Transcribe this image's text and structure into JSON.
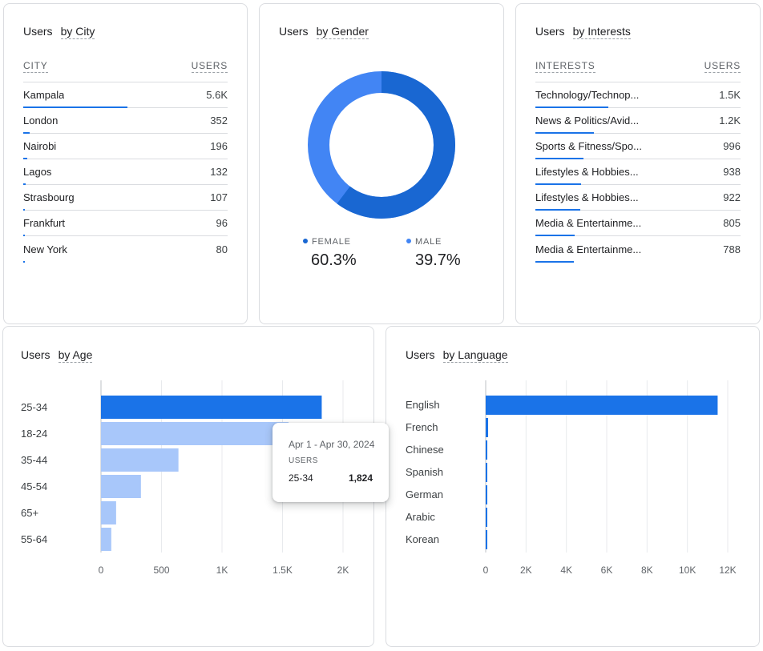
{
  "city_card": {
    "title_metric": "Users",
    "title_dim": "by City",
    "col_dim": "CITY",
    "col_metric": "USERS",
    "rows": [
      {
        "name": "Kampala",
        "value": "5.6K",
        "share": 1.0
      },
      {
        "name": "London",
        "value": "352",
        "share": 0.063
      },
      {
        "name": "Nairobi",
        "value": "196",
        "share": 0.035
      },
      {
        "name": "Lagos",
        "value": "132",
        "share": 0.024
      },
      {
        "name": "Strasbourg",
        "value": "107",
        "share": 0.019
      },
      {
        "name": "Frankfurt",
        "value": "96",
        "share": 0.017
      },
      {
        "name": "New York",
        "value": "80",
        "share": 0.014
      }
    ]
  },
  "gender_card": {
    "title_metric": "Users",
    "title_dim": "by Gender",
    "female_label": "FEMALE",
    "female_value": "60.3%",
    "female_share": 0.603,
    "male_label": "MALE",
    "male_value": "39.7%",
    "male_share": 0.397,
    "colors": {
      "female": "#1967d2",
      "male": "#4285f4"
    }
  },
  "interests_card": {
    "title_metric": "Users",
    "title_dim": "by Interests",
    "col_dim": "INTERESTS",
    "col_metric": "USERS",
    "rows": [
      {
        "name": "Technology/Technop...",
        "value": "1.5K",
        "share": 1.0
      },
      {
        "name": "News & Politics/Avid...",
        "value": "1.2K",
        "share": 0.8
      },
      {
        "name": "Sports & Fitness/Spo...",
        "value": "996",
        "share": 0.664
      },
      {
        "name": "Lifestyles & Hobbies...",
        "value": "938",
        "share": 0.625
      },
      {
        "name": "Lifestyles & Hobbies...",
        "value": "922",
        "share": 0.615
      },
      {
        "name": "Media & Entertainme...",
        "value": "805",
        "share": 0.537
      },
      {
        "name": "Media & Entertainme...",
        "value": "788",
        "share": 0.525
      }
    ]
  },
  "age_card": {
    "title_metric": "Users",
    "title_dim": "by Age",
    "highlight_color": "#1a73e8",
    "bar_color": "#a8c7fa",
    "categories": [
      "25-34",
      "18-24",
      "35-44",
      "45-54",
      "65+",
      "55-64"
    ],
    "values": [
      1824,
      1550,
      640,
      330,
      125,
      85
    ],
    "ticks": [
      0,
      500,
      1000,
      1500,
      2000
    ],
    "tick_labels": [
      "0",
      "500",
      "1K",
      "1.5K",
      "2K"
    ],
    "xmax": 2000,
    "tooltip": {
      "date": "Apr 1 - Apr 30, 2024",
      "metric": "USERS",
      "category": "25-34",
      "value": "1,824"
    }
  },
  "language_card": {
    "title_metric": "Users",
    "title_dim": "by Language",
    "bar_color": "#1a73e8",
    "categories": [
      "English",
      "French",
      "Chinese",
      "Spanish",
      "German",
      "Arabic",
      "Korean"
    ],
    "values": [
      11500,
      120,
      80,
      70,
      60,
      40,
      30
    ],
    "ticks": [
      0,
      2000,
      4000,
      6000,
      8000,
      10000,
      12000
    ],
    "tick_labels": [
      "0",
      "2K",
      "4K",
      "6K",
      "8K",
      "10K",
      "12K"
    ],
    "xmax": 12000
  }
}
